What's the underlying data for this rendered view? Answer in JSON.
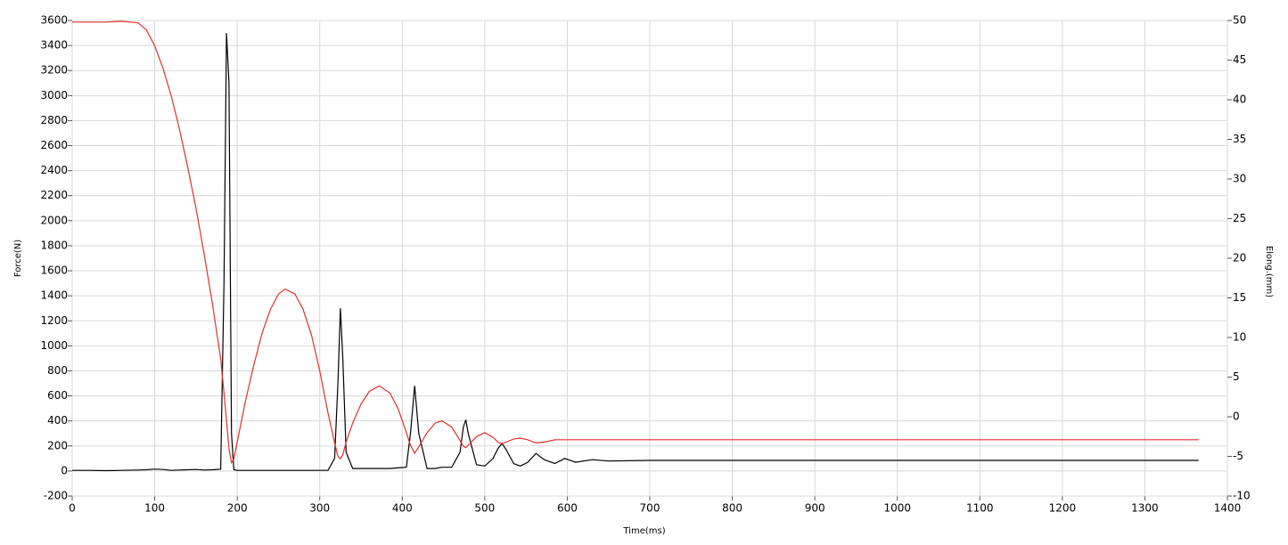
{
  "chart_data": {
    "type": "line",
    "xlabel": "Time(ms)",
    "ylabel": "Force(N)",
    "y2label": "Elong.(mm)",
    "xlim": [
      0,
      1400
    ],
    "xticks": [
      0,
      100,
      200,
      300,
      400,
      500,
      600,
      700,
      800,
      900,
      1000,
      1100,
      1200,
      1300,
      1400
    ],
    "ylim": [
      -200,
      3600
    ],
    "yticks": [
      -200,
      0,
      200,
      400,
      600,
      800,
      1000,
      1200,
      1400,
      1600,
      1800,
      2000,
      2200,
      2400,
      2600,
      2800,
      3000,
      3200,
      3400,
      3600
    ],
    "y2lim": [
      -10,
      50
    ],
    "y2ticks": [
      -10,
      -5,
      0,
      5,
      10,
      15,
      20,
      25,
      30,
      35,
      40,
      45,
      50
    ],
    "grid": true,
    "x": [
      0,
      20,
      40,
      60,
      80,
      90,
      100,
      110,
      120,
      130,
      140,
      150,
      160,
      170,
      180,
      184,
      187,
      190,
      193,
      196,
      200,
      210,
      220,
      230,
      240,
      250,
      258,
      270,
      280,
      290,
      300,
      310,
      318,
      322,
      325,
      328,
      332,
      340,
      350,
      360,
      372,
      385,
      395,
      405,
      410,
      415,
      420,
      430,
      440,
      448,
      460,
      470,
      474,
      477,
      480,
      490,
      500,
      510,
      516,
      521,
      526,
      535,
      543,
      552,
      562,
      572,
      585,
      597,
      610,
      630,
      650,
      700,
      800,
      900,
      1000,
      1100,
      1200,
      1300,
      1365
    ],
    "series": [
      {
        "color": "#000000",
        "values": [
          5,
          5,
          3,
          5,
          8,
          10,
          15,
          12,
          5,
          8,
          10,
          12,
          8,
          10,
          15,
          1500,
          3500,
          3100,
          300,
          10,
          5,
          5,
          5,
          5,
          5,
          5,
          5,
          5,
          5,
          5,
          5,
          5,
          100,
          700,
          1300,
          900,
          150,
          20,
          20,
          20,
          20,
          20,
          25,
          30,
          300,
          680,
          300,
          20,
          20,
          30,
          30,
          150,
          350,
          410,
          300,
          50,
          40,
          100,
          180,
          220,
          170,
          60,
          40,
          70,
          140,
          90,
          60,
          100,
          70,
          90,
          80,
          85,
          85,
          85,
          85,
          85,
          85,
          85,
          85
        ]
      },
      {
        "color": "#e0302c",
        "axis": "y2",
        "values": [
          49.8,
          49.8,
          49.8,
          49.9,
          49.7,
          48.8,
          46.8,
          44,
          40.5,
          36.3,
          31.5,
          26.3,
          20.5,
          14.2,
          7.3,
          3,
          -0.5,
          -4,
          -5.8,
          -5.3,
          -3.2,
          2,
          6.5,
          10.5,
          13.5,
          15.5,
          16.1,
          15.5,
          13.5,
          10.3,
          5.8,
          0.5,
          -3.3,
          -5,
          -5.3,
          -4.8,
          -3.2,
          -0.8,
          1.6,
          3.2,
          3.9,
          3,
          1,
          -2,
          -3.6,
          -4.6,
          -3.8,
          -2,
          -0.8,
          -0.5,
          -1.3,
          -3,
          -3.7,
          -3.9,
          -3.6,
          -2.5,
          -2,
          -2.6,
          -3.2,
          -3.4,
          -3.2,
          -2.8,
          -2.7,
          -2.9,
          -3.3,
          -3.2,
          -2.9,
          -2.9,
          -2.9,
          -2.9,
          -2.9,
          -2.9,
          -2.9,
          -2.9,
          -2.9,
          -2.9,
          -2.9,
          -2.9,
          -2.9
        ]
      }
    ]
  }
}
